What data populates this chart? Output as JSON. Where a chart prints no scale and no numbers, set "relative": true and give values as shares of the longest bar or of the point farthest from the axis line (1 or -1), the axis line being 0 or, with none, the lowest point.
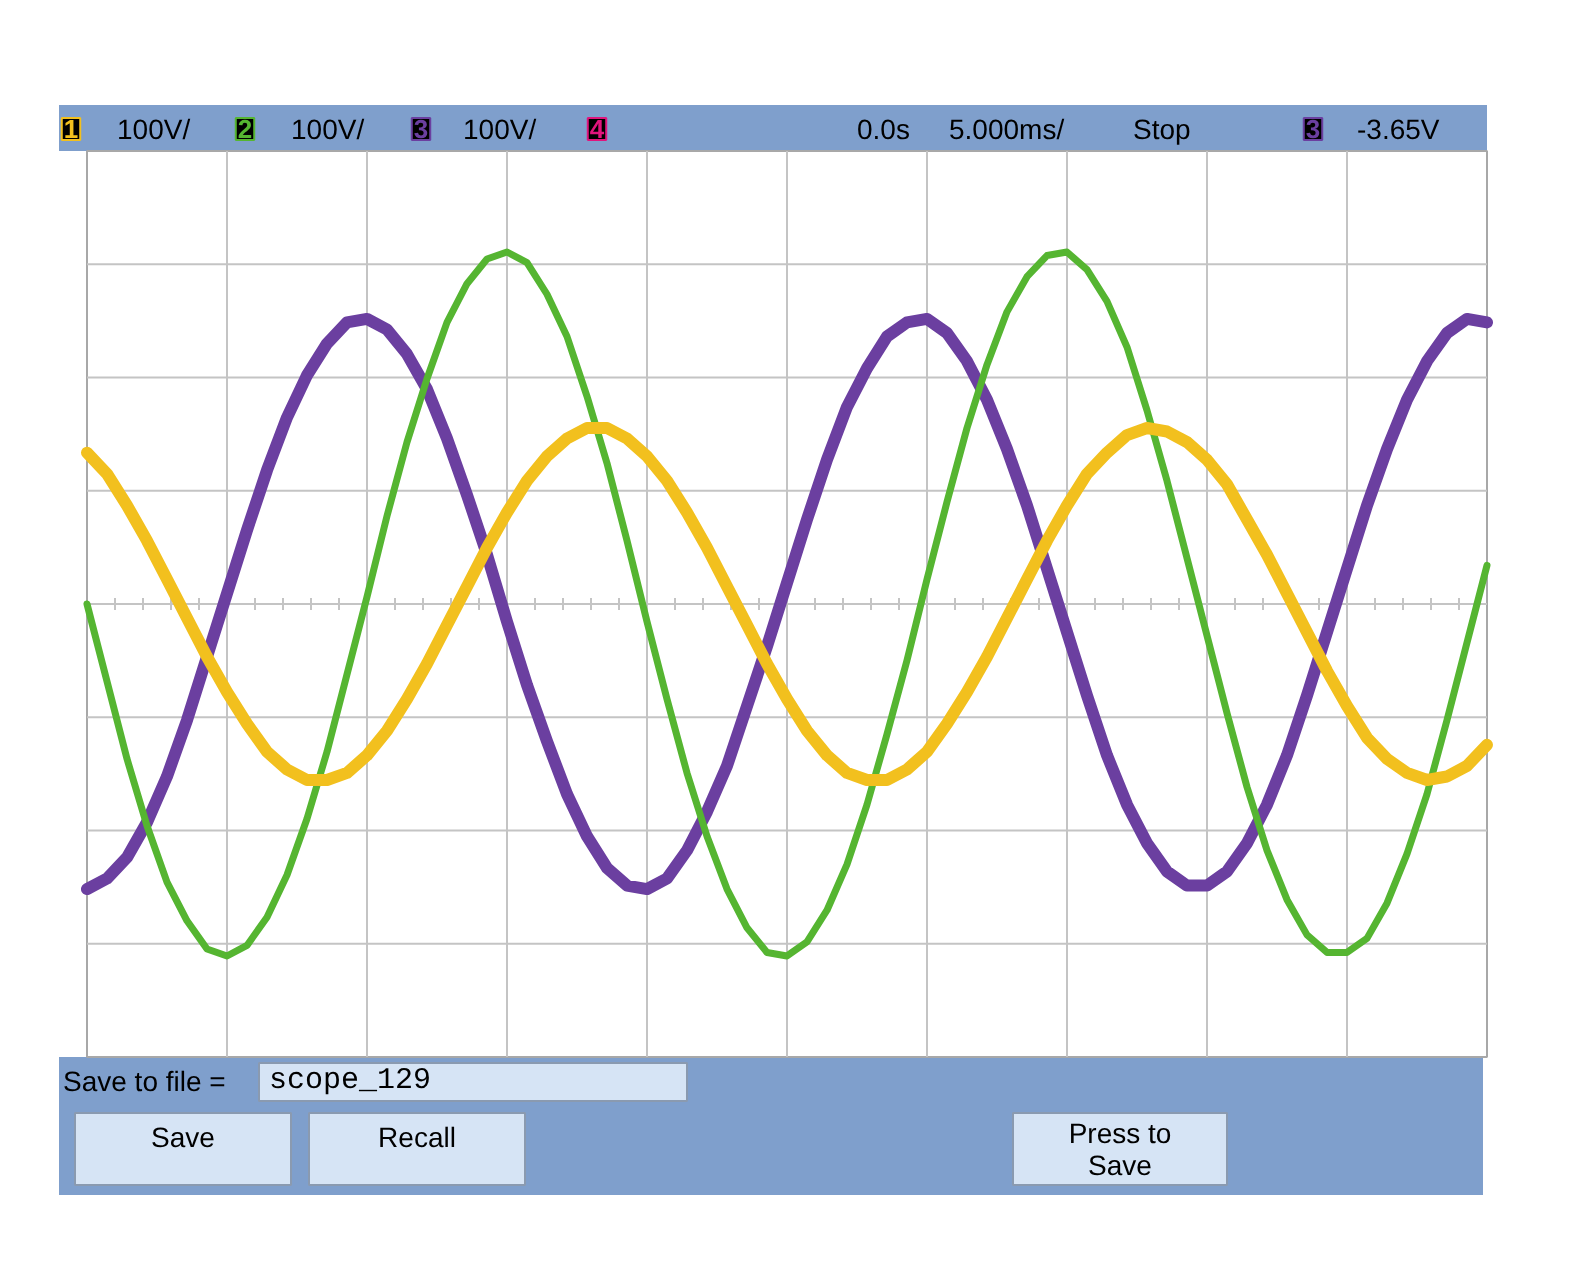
{
  "chart_data": {
    "type": "line",
    "relative": true,
    "grid": true,
    "categories": [
      null,
      null,
      null,
      null,
      null,
      null,
      null,
      null,
      null,
      null,
      null,
      null,
      null,
      null,
      null,
      null,
      null,
      null,
      null,
      null,
      null,
      null,
      null,
      null,
      null,
      null,
      null,
      null,
      null,
      null,
      null,
      null,
      null,
      null,
      null,
      null,
      null,
      null,
      null,
      null,
      null,
      null,
      null,
      null,
      null,
      null,
      null,
      null,
      null,
      null,
      null,
      null,
      null,
      null,
      null,
      null,
      null,
      null,
      null,
      null,
      null,
      null,
      null,
      null,
      null,
      null,
      null,
      null,
      null,
      null,
      null
    ],
    "series": [
      {
        "color": "#f2c01e",
        "values": [
          0.43,
          0.37,
          0.28,
          0.18,
          0.07,
          -0.04,
          -0.15,
          -0.25,
          -0.34,
          -0.42,
          -0.47,
          -0.5,
          -0.5,
          -0.48,
          -0.43,
          -0.36,
          -0.27,
          -0.17,
          -0.06,
          0.05,
          0.16,
          0.26,
          0.35,
          0.42,
          0.47,
          0.5,
          0.5,
          0.47,
          0.42,
          0.35,
          0.26,
          0.16,
          0.05,
          -0.06,
          -0.17,
          -0.27,
          -0.36,
          -0.43,
          -0.48,
          -0.5,
          -0.5,
          -0.47,
          -0.42,
          -0.34,
          -0.25,
          -0.15,
          -0.04,
          0.07,
          0.18,
          0.28,
          0.37,
          0.43,
          0.48,
          0.5,
          0.49,
          0.46,
          0.41,
          0.34,
          0.24,
          0.14,
          0.03,
          -0.08,
          -0.19,
          -0.29,
          -0.38,
          -0.44,
          -0.48,
          -0.5,
          -0.49,
          -0.46,
          -0.4
        ]
      },
      {
        "color": "#55b531",
        "values": [
          0,
          -0.22,
          -0.44,
          -0.63,
          -0.79,
          -0.9,
          -0.98,
          -1.0,
          -0.97,
          -0.89,
          -0.77,
          -0.61,
          -0.42,
          -0.2,
          0.02,
          0.25,
          0.46,
          0.64,
          0.8,
          0.91,
          0.98,
          1.0,
          0.97,
          0.88,
          0.76,
          0.59,
          0.4,
          0.18,
          -0.05,
          -0.27,
          -0.48,
          -0.66,
          -0.81,
          -0.92,
          -0.99,
          -1.0,
          -0.96,
          -0.87,
          -0.74,
          -0.57,
          -0.37,
          -0.16,
          0.07,
          0.29,
          0.5,
          0.68,
          0.83,
          0.93,
          0.99,
          1.0,
          0.95,
          0.86,
          0.73,
          0.55,
          0.35,
          0.13,
          -0.09,
          -0.31,
          -0.52,
          -0.7,
          -0.84,
          -0.94,
          -0.99,
          -0.99,
          -0.95,
          -0.85,
          -0.71,
          -0.54,
          -0.33,
          -0.11,
          0.11
        ]
      },
      {
        "color": "#6b3fa0",
        "values": [
          -0.81,
          -0.78,
          -0.72,
          -0.62,
          -0.49,
          -0.33,
          -0.15,
          0.03,
          0.21,
          0.38,
          0.53,
          0.65,
          0.74,
          0.8,
          0.81,
          0.78,
          0.71,
          0.61,
          0.47,
          0.31,
          0.14,
          -0.05,
          -0.23,
          -0.39,
          -0.54,
          -0.66,
          -0.75,
          -0.8,
          -0.81,
          -0.78,
          -0.7,
          -0.59,
          -0.46,
          -0.29,
          -0.12,
          0.06,
          0.24,
          0.41,
          0.56,
          0.67,
          0.76,
          0.8,
          0.81,
          0.77,
          0.69,
          0.58,
          0.44,
          0.28,
          0.1,
          -0.08,
          -0.26,
          -0.43,
          -0.57,
          -0.68,
          -0.76,
          -0.8,
          -0.8,
          -0.76,
          -0.68,
          -0.57,
          -0.43,
          -0.26,
          -0.08,
          0.1,
          0.28,
          0.44,
          0.58,
          0.69,
          0.77,
          0.81,
          0.8
        ]
      }
    ],
    "annotations": [
      "1",
      "100V/",
      "2",
      "100V/",
      "3",
      "100V/",
      "4",
      "0.0s",
      "5.000ms/",
      "Stop",
      "3",
      "-3.65V",
      "Save to file =",
      "scope_129",
      "Save",
      "Recall",
      "Press to Save"
    ]
  }
}
